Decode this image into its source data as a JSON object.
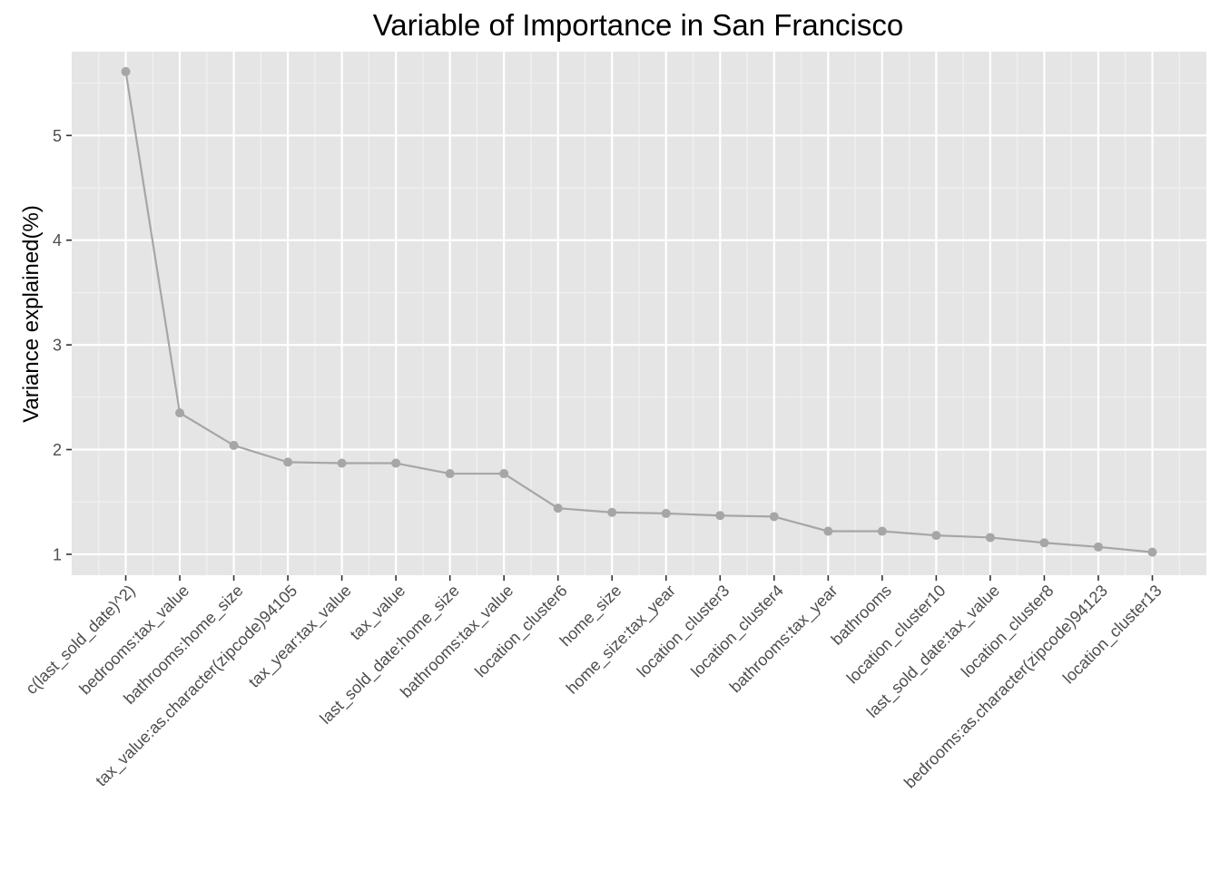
{
  "chart_data": {
    "type": "line",
    "title": "Variable of Importance in San Francisco",
    "xlabel": "",
    "ylabel": "Variance explained(%)",
    "ylim": [
      0.8,
      5.8
    ],
    "y_ticks": [
      1,
      2,
      3,
      4,
      5
    ],
    "grid": true,
    "legend": "none",
    "categories": [
      "c(last_sold_date)^2)",
      "bedrooms:tax_value",
      "bathrooms:home_size",
      "tax_value:as.character(zipcode)94105",
      "tax_year:tax_value",
      "tax_value",
      "last_sold_date:home_size",
      "bathrooms:tax_value",
      "location_cluster6",
      "home_size",
      "home_size:tax_year",
      "location_cluster3",
      "location_cluster4",
      "bathrooms:tax_year",
      "bathrooms",
      "location_cluster10",
      "last_sold_date:tax_value",
      "location_cluster8",
      "bedrooms:as.character(zipcode)94123",
      "location_cluster13"
    ],
    "series": [
      {
        "values": [
          5.61,
          2.35,
          2.04,
          1.88,
          1.87,
          1.87,
          1.77,
          1.77,
          1.44,
          1.4,
          1.39,
          1.37,
          1.36,
          1.22,
          1.22,
          1.18,
          1.16,
          1.11,
          1.07,
          1.02
        ]
      }
    ],
    "colors": {
      "panel": "#e5e5e5",
      "grid_major": "#ffffff",
      "grid_minor": "#f2f2f2",
      "line": "#a6a6a6",
      "point": "#a6a6a6",
      "tick_text": "#4d4d4d",
      "tick_mark": "#333333"
    }
  }
}
